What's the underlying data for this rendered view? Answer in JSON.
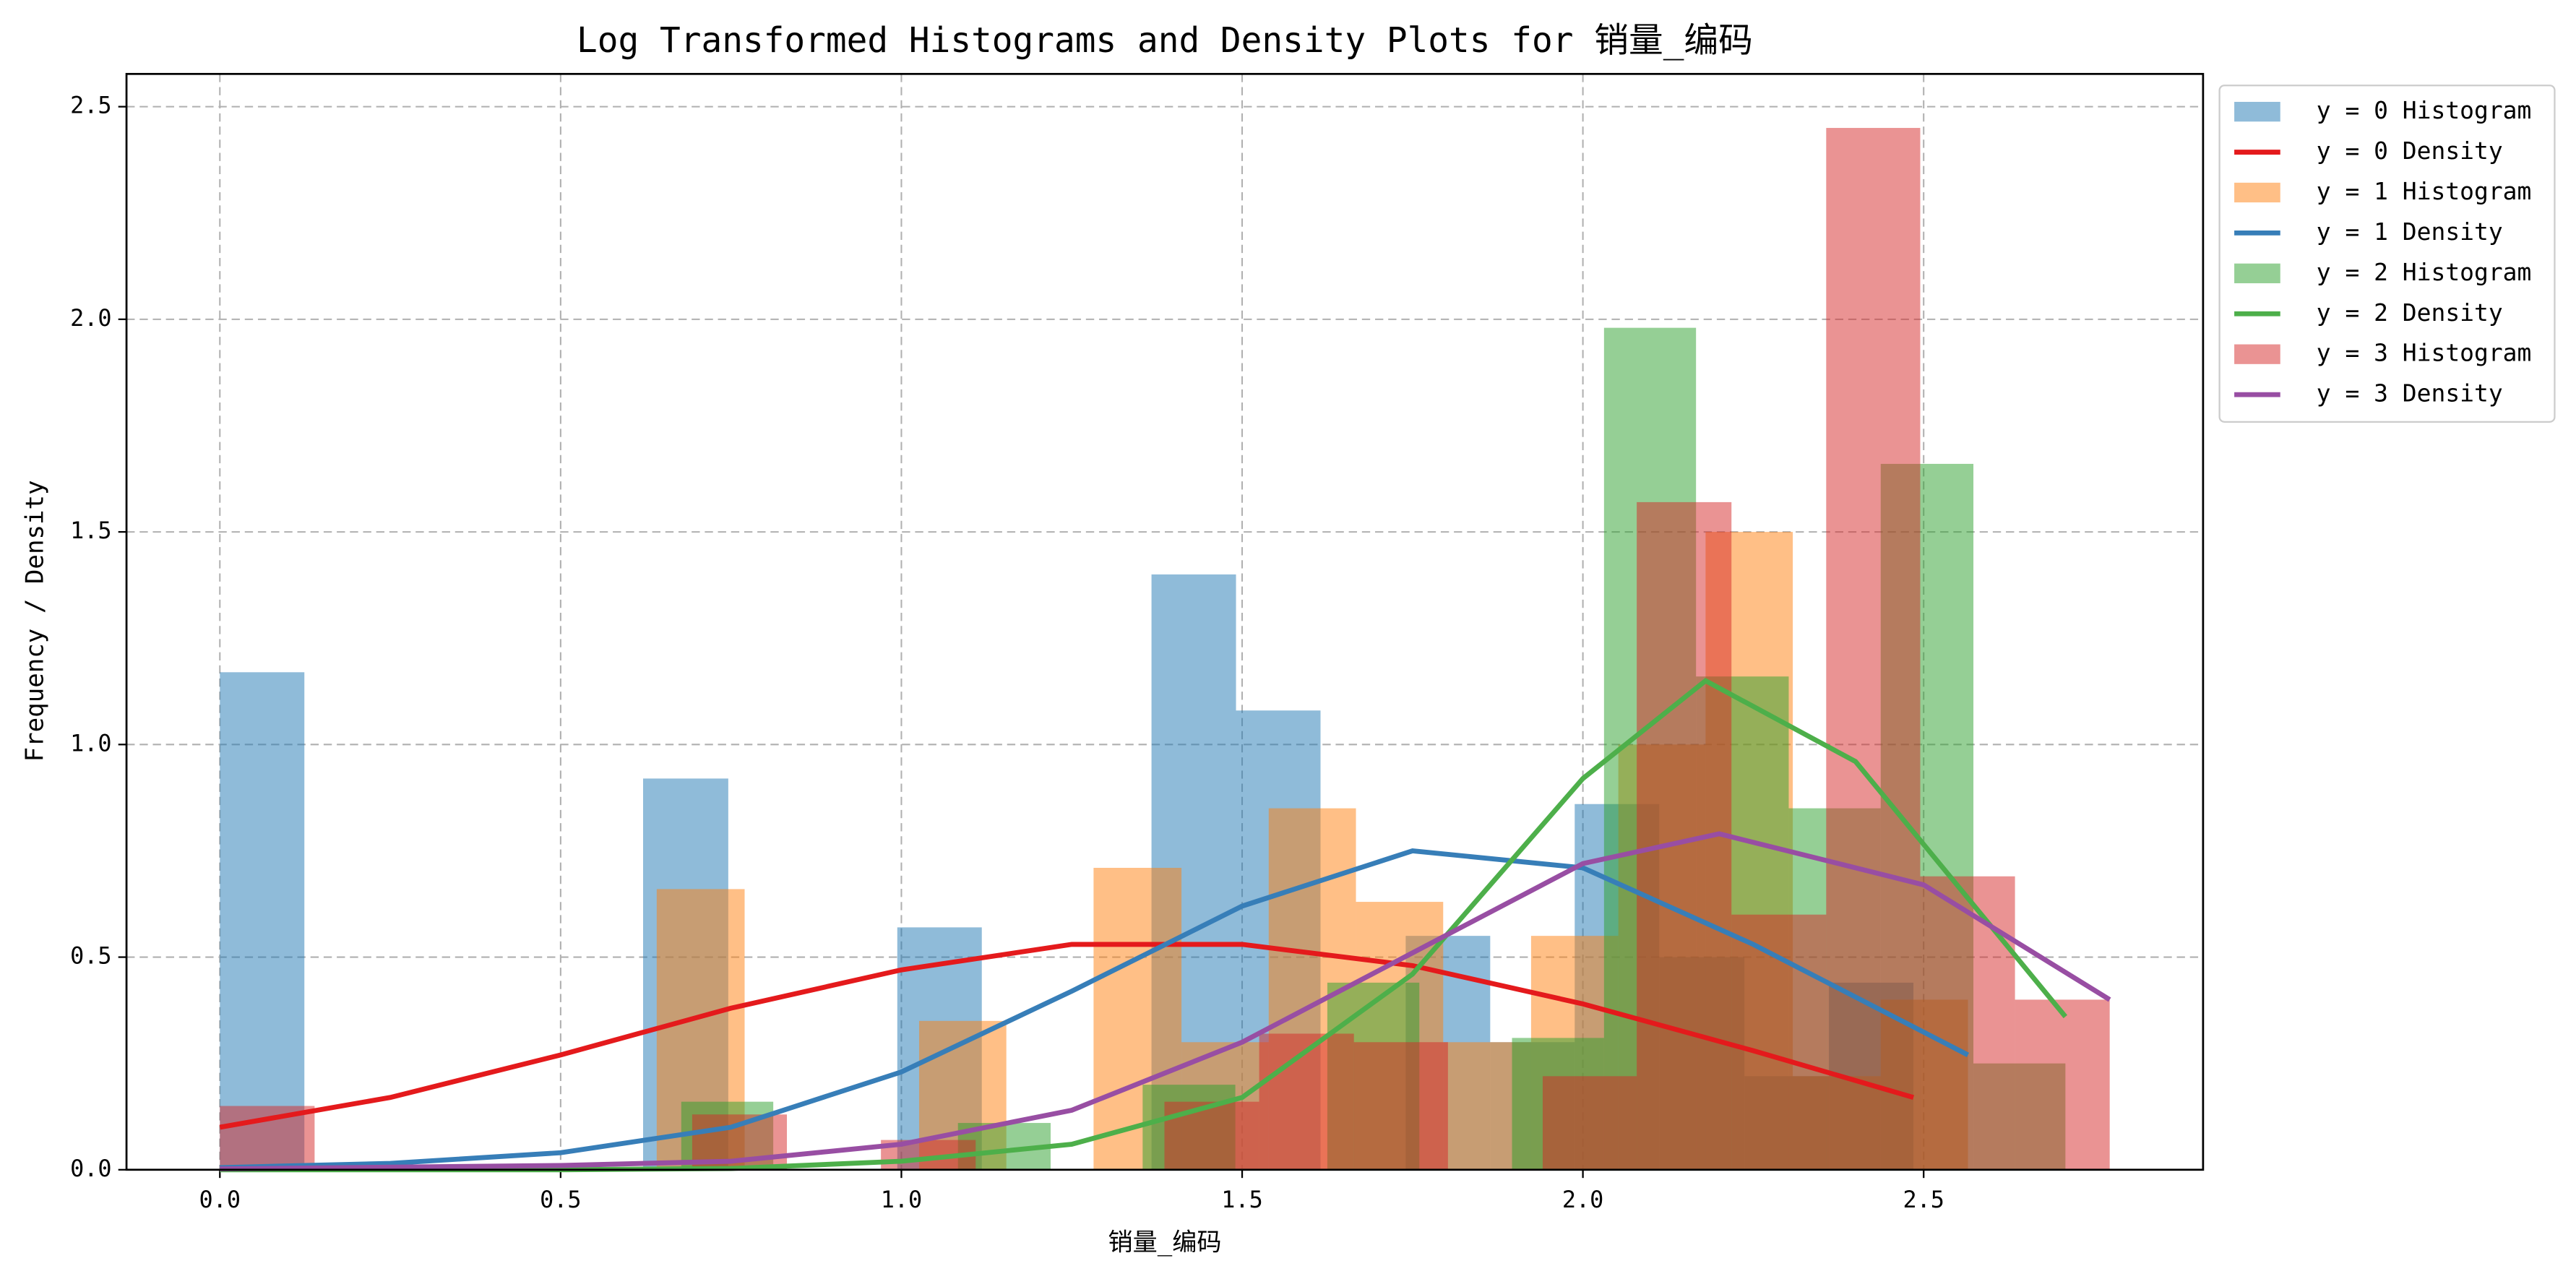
{
  "chart_data": {
    "type": "histogram",
    "title": "Log Transformed Histograms and Density Plots for 销量_编码",
    "xlabel": "销量_编码",
    "ylabel": "Frequency / Density",
    "xlim": [
      -0.137,
      2.91
    ],
    "ylim": [
      0,
      2.577
    ],
    "xticks": [
      {
        "value": 0,
        "label": "0.0"
      },
      {
        "value": 0.5,
        "label": "0.5"
      },
      {
        "value": 1,
        "label": "1.0"
      },
      {
        "value": 1.5,
        "label": "1.5"
      },
      {
        "value": 2,
        "label": "2.0"
      },
      {
        "value": 2.5,
        "label": "2.5"
      }
    ],
    "yticks": [
      {
        "value": 0,
        "label": "0.0"
      },
      {
        "value": 0.5,
        "label": "0.5"
      },
      {
        "value": 1,
        "label": "1.0"
      },
      {
        "value": 1.5,
        "label": "1.5"
      },
      {
        "value": 2,
        "label": "2.0"
      },
      {
        "value": 2.5,
        "label": "2.5"
      }
    ],
    "grid": true,
    "legend": "outside upper right",
    "histograms": [
      {
        "name": "y = 0 Histogram",
        "color": "#1f77b4",
        "bins": [
          0,
          0.124,
          0.249,
          0.373,
          0.497,
          0.621,
          0.746,
          0.87,
          0.994,
          1.118,
          1.243,
          1.367,
          1.491,
          1.615,
          1.74,
          1.864,
          1.988,
          2.112,
          2.237,
          2.361,
          2.485
        ],
        "values": [
          1.17,
          0,
          0,
          0,
          0,
          0.92,
          0,
          0,
          0.57,
          0,
          0,
          1.4,
          1.08,
          0,
          0.55,
          0.3,
          0.86,
          0.5,
          0.22,
          0.44
        ]
      },
      {
        "name": "y = 1 Histogram",
        "color": "#ff7f0e",
        "bins": [
          0,
          0.128,
          0.257,
          0.385,
          0.513,
          0.641,
          0.77,
          0.898,
          1.026,
          1.154,
          1.282,
          1.411,
          1.539,
          1.667,
          1.795,
          1.924,
          2.052,
          2.18,
          2.308,
          2.437,
          2.565
        ],
        "values": [
          0,
          0,
          0,
          0,
          0,
          0.66,
          0,
          0,
          0.35,
          0,
          0.71,
          0.3,
          0.85,
          0.63,
          0.3,
          0.55,
          1.0,
          1.5,
          0.22,
          0.4
        ]
      },
      {
        "name": "y = 2 Histogram",
        "color": "#2ca02c",
        "bins": [
          0,
          0.135,
          0.271,
          0.406,
          0.542,
          0.677,
          0.812,
          0.948,
          1.083,
          1.219,
          1.354,
          1.49,
          1.625,
          1.76,
          1.896,
          2.031,
          2.166,
          2.302,
          2.437,
          2.573,
          2.708
        ],
        "values": [
          0,
          0,
          0,
          0,
          0,
          0.16,
          0,
          0,
          0.11,
          0,
          0.2,
          0,
          0.44,
          0,
          0.31,
          1.98,
          1.16,
          0.85,
          1.66,
          0.25
        ]
      },
      {
        "name": "y = 3 Histogram",
        "color": "#d62728",
        "bins": [
          0,
          0.139,
          0.277,
          0.416,
          0.555,
          0.693,
          0.832,
          0.97,
          1.109,
          1.248,
          1.386,
          1.525,
          1.664,
          1.802,
          1.941,
          2.079,
          2.218,
          2.357,
          2.495,
          2.634,
          2.773
        ],
        "values": [
          0.15,
          0,
          0,
          0,
          0,
          0.13,
          0,
          0.07,
          0,
          0,
          0.16,
          0.32,
          0.3,
          0,
          0.22,
          1.57,
          0.6,
          2.45,
          0.69,
          0.4
        ]
      }
    ],
    "densities": [
      {
        "name": "y = 0 Density",
        "color": "#e41a1c",
        "x": [
          0,
          0.25,
          0.5,
          0.75,
          1.0,
          1.25,
          1.5,
          1.75,
          2.0,
          2.25,
          2.485
        ],
        "values": [
          0.1,
          0.17,
          0.27,
          0.38,
          0.47,
          0.53,
          0.53,
          0.48,
          0.39,
          0.28,
          0.17
        ]
      },
      {
        "name": "y = 1 Density",
        "color": "#377eb8",
        "x": [
          0,
          0.25,
          0.5,
          0.75,
          1.0,
          1.25,
          1.5,
          1.75,
          2.0,
          2.25,
          2.565
        ],
        "values": [
          0.005,
          0.015,
          0.04,
          0.1,
          0.23,
          0.42,
          0.62,
          0.75,
          0.71,
          0.53,
          0.27
        ]
      },
      {
        "name": "y = 2 Density",
        "color": "#4daf4a",
        "x": [
          0,
          0.5,
          0.75,
          1.0,
          1.25,
          1.5,
          1.75,
          2.0,
          2.18,
          2.4,
          2.708
        ],
        "values": [
          0,
          0,
          0.003,
          0.02,
          0.06,
          0.17,
          0.46,
          0.92,
          1.15,
          0.96,
          0.36
        ]
      },
      {
        "name": "y = 3 Density",
        "color": "#984ea3",
        "x": [
          0,
          0.5,
          0.75,
          1.0,
          1.25,
          1.5,
          1.75,
          2.0,
          2.2,
          2.5,
          2.773
        ],
        "values": [
          0.002,
          0.01,
          0.02,
          0.06,
          0.14,
          0.3,
          0.51,
          0.72,
          0.79,
          0.67,
          0.4
        ]
      }
    ]
  }
}
